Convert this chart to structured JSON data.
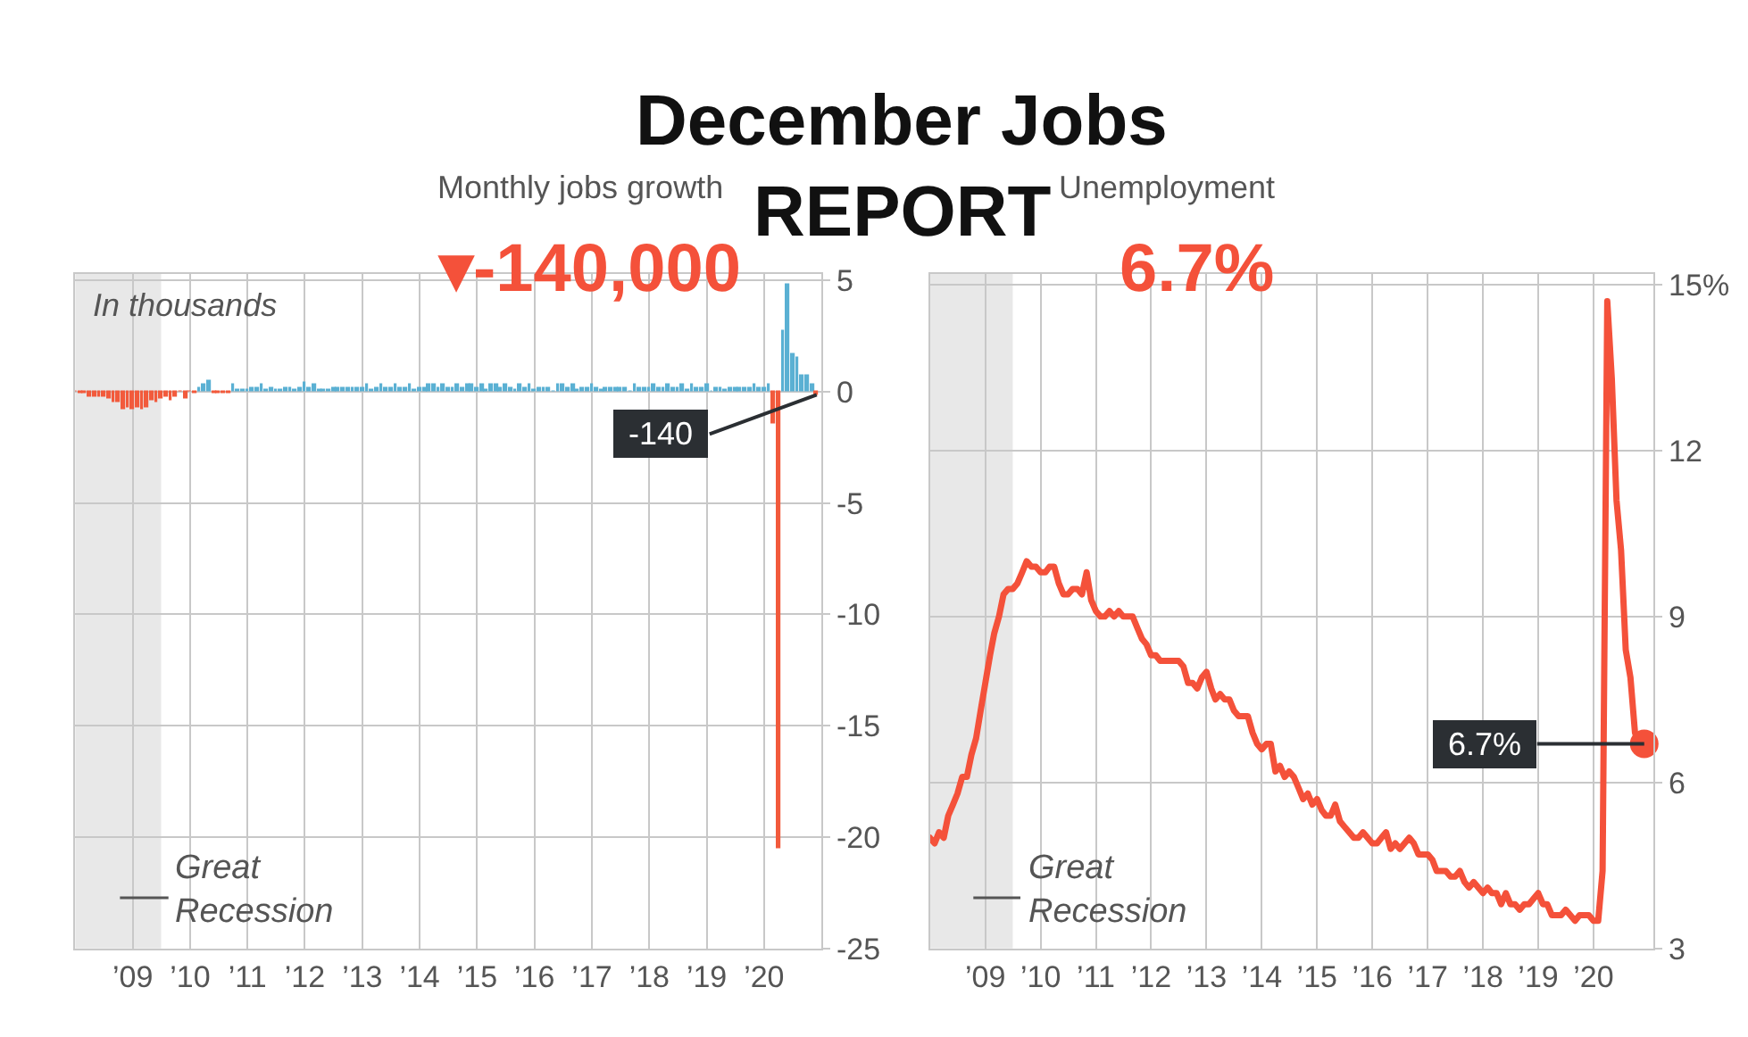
{
  "chart_data": [
    {
      "type": "bar",
      "title": "Monthly jobs growth",
      "subtitle": "▾-140,000",
      "annotations": [
        "December Jobs REPORT",
        "In thousands",
        {
          "text": "-140",
          "x": "2020-12",
          "y": -0.14
        }
      ],
      "x": [
        "2008-01",
        "2008-02",
        "2008-03",
        "2008-04",
        "2008-05",
        "2008-06",
        "2008-07",
        "2008-08",
        "2008-09",
        "2008-10",
        "2008-11",
        "2008-12",
        "2009-01",
        "2009-02",
        "2009-03",
        "2009-04",
        "2009-05",
        "2009-06",
        "2009-07",
        "2009-08",
        "2009-09",
        "2009-10",
        "2009-11",
        "2009-12",
        "2010-01",
        "2010-02",
        "2010-03",
        "2010-04",
        "2010-05",
        "2010-06",
        "2010-07",
        "2010-08",
        "2010-09",
        "2010-10",
        "2010-11",
        "2010-12",
        "2011-01",
        "2011-02",
        "2011-03",
        "2011-04",
        "2011-05",
        "2011-06",
        "2011-07",
        "2011-08",
        "2011-09",
        "2011-10",
        "2011-11",
        "2011-12",
        "2012-01",
        "2012-02",
        "2012-03",
        "2012-04",
        "2012-05",
        "2012-06",
        "2012-07",
        "2012-08",
        "2012-09",
        "2012-10",
        "2012-11",
        "2012-12",
        "2013-01",
        "2013-02",
        "2013-03",
        "2013-04",
        "2013-05",
        "2013-06",
        "2013-07",
        "2013-08",
        "2013-09",
        "2013-10",
        "2013-11",
        "2013-12",
        "2014-01",
        "2014-02",
        "2014-03",
        "2014-04",
        "2014-05",
        "2014-06",
        "2014-07",
        "2014-08",
        "2014-09",
        "2014-10",
        "2014-11",
        "2014-12",
        "2015-01",
        "2015-02",
        "2015-03",
        "2015-04",
        "2015-05",
        "2015-06",
        "2015-07",
        "2015-08",
        "2015-09",
        "2015-10",
        "2015-11",
        "2015-12",
        "2016-01",
        "2016-02",
        "2016-03",
        "2016-04",
        "2016-05",
        "2016-06",
        "2016-07",
        "2016-08",
        "2016-09",
        "2016-10",
        "2016-11",
        "2016-12",
        "2017-01",
        "2017-02",
        "2017-03",
        "2017-04",
        "2017-05",
        "2017-06",
        "2017-07",
        "2017-08",
        "2017-09",
        "2017-10",
        "2017-11",
        "2017-12",
        "2018-01",
        "2018-02",
        "2018-03",
        "2018-04",
        "2018-05",
        "2018-06",
        "2018-07",
        "2018-08",
        "2018-09",
        "2018-10",
        "2018-11",
        "2018-12",
        "2019-01",
        "2019-02",
        "2019-03",
        "2019-04",
        "2019-05",
        "2019-06",
        "2019-07",
        "2019-08",
        "2019-09",
        "2019-10",
        "2019-11",
        "2019-12",
        "2020-01",
        "2020-02",
        "2020-03",
        "2020-04",
        "2020-05",
        "2020-06",
        "2020-07",
        "2020-08",
        "2020-09",
        "2020-10",
        "2020-11",
        "2020-12"
      ],
      "values": [
        0.0,
        -0.1,
        -0.1,
        -0.2,
        -0.2,
        -0.2,
        -0.2,
        -0.3,
        -0.5,
        -0.5,
        -0.8,
        -0.7,
        -0.8,
        -0.7,
        -0.8,
        -0.7,
        -0.4,
        -0.5,
        -0.3,
        -0.2,
        -0.4,
        -0.2,
        0.0,
        -0.3,
        0.0,
        -0.1,
        0.2,
        0.3,
        0.5,
        -0.1,
        -0.1,
        -0.1,
        -0.1,
        0.3,
        0.1,
        0.1,
        0.1,
        0.2,
        0.2,
        0.3,
        0.1,
        0.2,
        0.1,
        0.1,
        0.2,
        0.2,
        0.1,
        0.2,
        0.4,
        0.2,
        0.3,
        0.1,
        0.1,
        0.1,
        0.2,
        0.2,
        0.2,
        0.2,
        0.2,
        0.2,
        0.2,
        0.3,
        0.1,
        0.2,
        0.3,
        0.2,
        0.2,
        0.3,
        0.2,
        0.2,
        0.3,
        0.1,
        0.2,
        0.2,
        0.3,
        0.3,
        0.2,
        0.3,
        0.2,
        0.2,
        0.3,
        0.2,
        0.3,
        0.3,
        0.2,
        0.3,
        0.1,
        0.3,
        0.3,
        0.2,
        0.3,
        0.2,
        0.1,
        0.3,
        0.2,
        0.3,
        0.1,
        0.2,
        0.2,
        0.2,
        0.0,
        0.3,
        0.3,
        0.2,
        0.3,
        0.1,
        0.2,
        0.2,
        0.3,
        0.2,
        0.1,
        0.2,
        0.2,
        0.2,
        0.2,
        0.2,
        0.0,
        0.3,
        0.2,
        0.2,
        0.2,
        0.3,
        0.2,
        0.2,
        0.3,
        0.2,
        0.2,
        0.3,
        0.1,
        0.3,
        0.2,
        0.2,
        0.3,
        0.0,
        0.2,
        0.2,
        0.1,
        0.2,
        0.2,
        0.2,
        0.2,
        0.2,
        0.3,
        0.2,
        0.2,
        0.3,
        -1.4,
        -20.5,
        2.7,
        4.8,
        1.7,
        1.5,
        0.7,
        0.7,
        0.3,
        -0.14
      ],
      "colors": [
        "#f25a3c",
        "#f25a3c",
        "#f25a3c",
        "#f25a3c",
        "#f25a3c",
        "#f25a3c",
        "#f25a3c",
        "#f25a3c",
        "#f25a3c",
        "#f25a3c",
        "#f25a3c",
        "#f25a3c",
        "#f25a3c",
        "#f25a3c",
        "#f25a3c",
        "#f25a3c",
        "#f25a3c",
        "#f25a3c",
        "#f25a3c",
        "#f25a3c",
        "#f25a3c",
        "#f25a3c",
        "#f25a3c",
        "#f25a3c",
        "#f25a3c",
        "#f25a3c",
        "#5ab0d3",
        "#5ab0d3",
        "#5ab0d3",
        "#f25a3c",
        "#f25a3c",
        "#f25a3c",
        "#f25a3c",
        "#5ab0d3",
        "#5ab0d3",
        "#5ab0d3",
        "#5ab0d3",
        "#5ab0d3",
        "#5ab0d3",
        "#5ab0d3",
        "#5ab0d3",
        "#5ab0d3",
        "#5ab0d3",
        "#5ab0d3",
        "#5ab0d3",
        "#5ab0d3",
        "#5ab0d3",
        "#5ab0d3",
        "#5ab0d3",
        "#5ab0d3",
        "#5ab0d3",
        "#5ab0d3",
        "#5ab0d3",
        "#5ab0d3",
        "#5ab0d3",
        "#5ab0d3",
        "#5ab0d3",
        "#5ab0d3",
        "#5ab0d3",
        "#5ab0d3",
        "#5ab0d3",
        "#5ab0d3",
        "#5ab0d3",
        "#5ab0d3",
        "#5ab0d3",
        "#5ab0d3",
        "#5ab0d3",
        "#5ab0d3",
        "#5ab0d3",
        "#5ab0d3",
        "#5ab0d3",
        "#5ab0d3",
        "#5ab0d3",
        "#5ab0d3",
        "#5ab0d3",
        "#5ab0d3",
        "#5ab0d3",
        "#5ab0d3",
        "#5ab0d3",
        "#5ab0d3",
        "#5ab0d3",
        "#5ab0d3",
        "#5ab0d3",
        "#5ab0d3",
        "#5ab0d3",
        "#5ab0d3",
        "#5ab0d3",
        "#5ab0d3",
        "#5ab0d3",
        "#5ab0d3",
        "#5ab0d3",
        "#5ab0d3",
        "#5ab0d3",
        "#5ab0d3",
        "#5ab0d3",
        "#5ab0d3",
        "#5ab0d3",
        "#5ab0d3",
        "#5ab0d3",
        "#5ab0d3",
        "#5ab0d3",
        "#5ab0d3",
        "#5ab0d3",
        "#5ab0d3",
        "#5ab0d3",
        "#5ab0d3",
        "#5ab0d3",
        "#5ab0d3",
        "#5ab0d3",
        "#5ab0d3",
        "#5ab0d3",
        "#5ab0d3",
        "#5ab0d3",
        "#5ab0d3",
        "#5ab0d3",
        "#5ab0d3",
        "#5ab0d3",
        "#5ab0d3",
        "#5ab0d3",
        "#5ab0d3",
        "#5ab0d3",
        "#5ab0d3",
        "#5ab0d3",
        "#5ab0d3",
        "#5ab0d3",
        "#5ab0d3",
        "#5ab0d3",
        "#5ab0d3",
        "#5ab0d3",
        "#5ab0d3",
        "#5ab0d3",
        "#5ab0d3",
        "#5ab0d3",
        "#5ab0d3",
        "#5ab0d3",
        "#5ab0d3",
        "#5ab0d3",
        "#5ab0d3",
        "#5ab0d3",
        "#5ab0d3",
        "#5ab0d3",
        "#5ab0d3",
        "#5ab0d3",
        "#5ab0d3",
        "#5ab0d3",
        "#5ab0d3",
        "#f25a3c",
        "#f25a3c",
        "#5ab0d3",
        "#5ab0d3",
        "#5ab0d3",
        "#5ab0d3",
        "#5ab0d3",
        "#5ab0d3",
        "#5ab0d3",
        "#f25a3c"
      ],
      "xlim": [
        "2008-01",
        "2021-01"
      ],
      "xticks": [
        {
          "value": "2009-01",
          "label": "’09"
        },
        {
          "value": "2010-01",
          "label": "’10"
        },
        {
          "value": "2011-01",
          "label": "’11"
        },
        {
          "value": "2012-01",
          "label": "’12"
        },
        {
          "value": "2013-01",
          "label": "’13"
        },
        {
          "value": "2014-01",
          "label": "’14"
        },
        {
          "value": "2015-01",
          "label": "’15"
        },
        {
          "value": "2016-01",
          "label": "’16"
        },
        {
          "value": "2017-01",
          "label": "’17"
        },
        {
          "value": "2018-01",
          "label": "’18"
        },
        {
          "value": "2019-01",
          "label": "’19"
        },
        {
          "value": "2020-01",
          "label": "’20"
        }
      ],
      "ylim": [
        -25,
        5.3
      ],
      "yticks": [
        5,
        0,
        -5,
        -10,
        -15,
        -20,
        -25
      ],
      "bands": [
        {
          "axis": "x",
          "from": "2008-01",
          "to": "2009-07",
          "label": "Great Recession",
          "color": "#e8e8e8"
        }
      ],
      "grid": true
    },
    {
      "type": "line",
      "title": "Unemployment",
      "subtitle": "6.7%",
      "annotations": [
        {
          "text": "6.7%",
          "x": "2020-12",
          "y": 6.7
        }
      ],
      "series": [
        {
          "type": "line",
          "color": "#f4513a",
          "x": [
            "2008-01",
            "2008-02",
            "2008-03",
            "2008-04",
            "2008-05",
            "2008-06",
            "2008-07",
            "2008-08",
            "2008-09",
            "2008-10",
            "2008-11",
            "2008-12",
            "2009-01",
            "2009-02",
            "2009-03",
            "2009-04",
            "2009-05",
            "2009-06",
            "2009-07",
            "2009-08",
            "2009-09",
            "2009-10",
            "2009-11",
            "2009-12",
            "2010-01",
            "2010-02",
            "2010-03",
            "2010-04",
            "2010-05",
            "2010-06",
            "2010-07",
            "2010-08",
            "2010-09",
            "2010-10",
            "2010-11",
            "2010-12",
            "2011-01",
            "2011-02",
            "2011-03",
            "2011-04",
            "2011-05",
            "2011-06",
            "2011-07",
            "2011-08",
            "2011-09",
            "2011-10",
            "2011-11",
            "2011-12",
            "2012-01",
            "2012-02",
            "2012-03",
            "2012-04",
            "2012-05",
            "2012-06",
            "2012-07",
            "2012-08",
            "2012-09",
            "2012-10",
            "2012-11",
            "2012-12",
            "2013-01",
            "2013-02",
            "2013-03",
            "2013-04",
            "2013-05",
            "2013-06",
            "2013-07",
            "2013-08",
            "2013-09",
            "2013-10",
            "2013-11",
            "2013-12",
            "2014-01",
            "2014-02",
            "2014-03",
            "2014-04",
            "2014-05",
            "2014-06",
            "2014-07",
            "2014-08",
            "2014-09",
            "2014-10",
            "2014-11",
            "2014-12",
            "2015-01",
            "2015-02",
            "2015-03",
            "2015-04",
            "2015-05",
            "2015-06",
            "2015-07",
            "2015-08",
            "2015-09",
            "2015-10",
            "2015-11",
            "2015-12",
            "2016-01",
            "2016-02",
            "2016-03",
            "2016-04",
            "2016-05",
            "2016-06",
            "2016-07",
            "2016-08",
            "2016-09",
            "2016-10",
            "2016-11",
            "2016-12",
            "2017-01",
            "2017-02",
            "2017-03",
            "2017-04",
            "2017-05",
            "2017-06",
            "2017-07",
            "2017-08",
            "2017-09",
            "2017-10",
            "2017-11",
            "2017-12",
            "2018-01",
            "2018-02",
            "2018-03",
            "2018-04",
            "2018-05",
            "2018-06",
            "2018-07",
            "2018-08",
            "2018-09",
            "2018-10",
            "2018-11",
            "2018-12",
            "2019-01",
            "2019-02",
            "2019-03",
            "2019-04",
            "2019-05",
            "2019-06",
            "2019-07",
            "2019-08",
            "2019-09",
            "2019-10",
            "2019-11",
            "2019-12",
            "2020-01",
            "2020-02",
            "2020-03",
            "2020-04",
            "2020-05",
            "2020-06",
            "2020-07",
            "2020-08",
            "2020-09",
            "2020-10",
            "2020-11",
            "2020-12"
          ],
          "values": [
            5.0,
            4.9,
            5.1,
            5.0,
            5.4,
            5.6,
            5.8,
            6.1,
            6.1,
            6.5,
            6.8,
            7.3,
            7.8,
            8.3,
            8.7,
            9.0,
            9.4,
            9.5,
            9.5,
            9.6,
            9.8,
            10.0,
            9.9,
            9.9,
            9.8,
            9.8,
            9.9,
            9.9,
            9.6,
            9.4,
            9.4,
            9.5,
            9.5,
            9.4,
            9.8,
            9.3,
            9.1,
            9.0,
            9.0,
            9.1,
            9.0,
            9.1,
            9.0,
            9.0,
            9.0,
            8.8,
            8.6,
            8.5,
            8.3,
            8.3,
            8.2,
            8.2,
            8.2,
            8.2,
            8.2,
            8.1,
            7.8,
            7.8,
            7.7,
            7.9,
            8.0,
            7.7,
            7.5,
            7.6,
            7.5,
            7.5,
            7.3,
            7.2,
            7.2,
            7.2,
            6.9,
            6.7,
            6.6,
            6.7,
            6.7,
            6.2,
            6.3,
            6.1,
            6.2,
            6.1,
            5.9,
            5.7,
            5.8,
            5.6,
            5.7,
            5.5,
            5.4,
            5.4,
            5.6,
            5.3,
            5.2,
            5.1,
            5.0,
            5.0,
            5.1,
            5.0,
            4.9,
            4.9,
            5.0,
            5.1,
            4.8,
            4.9,
            4.8,
            4.9,
            5.0,
            4.9,
            4.7,
            4.7,
            4.7,
            4.6,
            4.4,
            4.4,
            4.4,
            4.3,
            4.3,
            4.4,
            4.2,
            4.1,
            4.2,
            4.1,
            4.0,
            4.1,
            4.0,
            4.0,
            3.8,
            4.0,
            3.8,
            3.8,
            3.7,
            3.8,
            3.8,
            3.9,
            4.0,
            3.8,
            3.8,
            3.6,
            3.6,
            3.6,
            3.7,
            3.6,
            3.5,
            3.6,
            3.6,
            3.6,
            3.5,
            3.5,
            4.4,
            14.7,
            13.3,
            11.1,
            10.2,
            8.4,
            7.9,
            6.9,
            6.7,
            6.7
          ]
        },
        {
          "type": "scatter",
          "color": "#f4513a",
          "marker": "circle",
          "x": [
            "2020-12"
          ],
          "values": [
            6.7
          ]
        }
      ],
      "xlim": [
        "2008-01",
        "2021-02"
      ],
      "xticks": [
        {
          "value": "2009-01",
          "label": "’09"
        },
        {
          "value": "2010-01",
          "label": "’10"
        },
        {
          "value": "2011-01",
          "label": "’11"
        },
        {
          "value": "2012-01",
          "label": "’12"
        },
        {
          "value": "2013-01",
          "label": "’13"
        },
        {
          "value": "2014-01",
          "label": "’14"
        },
        {
          "value": "2015-01",
          "label": "’15"
        },
        {
          "value": "2016-01",
          "label": "’16"
        },
        {
          "value": "2017-01",
          "label": "’17"
        },
        {
          "value": "2018-01",
          "label": "’18"
        },
        {
          "value": "2019-01",
          "label": "’19"
        },
        {
          "value": "2020-01",
          "label": "’20"
        }
      ],
      "ylim": [
        3,
        15.2
      ],
      "yticks": [
        {
          "value": 15,
          "label": "15%"
        },
        12,
        9,
        6,
        3
      ],
      "bands": [
        {
          "axis": "x",
          "from": "2008-01",
          "to": "2009-07",
          "label": "Great Recession",
          "color": "#e8e8e8"
        }
      ],
      "grid": true,
      "line_style": "solid"
    }
  ]
}
